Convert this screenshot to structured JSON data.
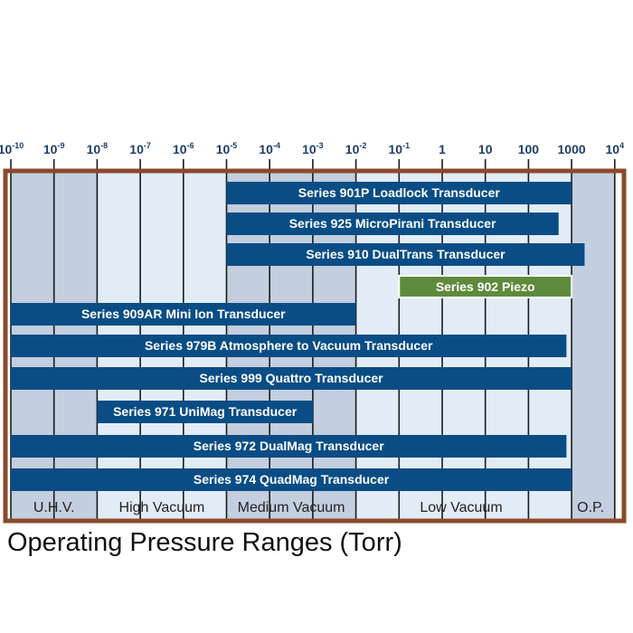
{
  "caption": "Operating Pressure Ranges (Torr)",
  "colors": {
    "bar": "#0a4d85",
    "highlight_bar": "#5f8a3d",
    "highlight_text": "#f6f0a0",
    "frame": "#8a4a2b",
    "band_dark": "#c3cedf",
    "band_light": "#e2ecf6",
    "gridline": "#1b1b1b",
    "tick_text": "#1e3f66"
  },
  "chart_data": {
    "type": "range-bar",
    "title": "Operating Pressure Ranges (Torr)",
    "x_scale": "log",
    "xlim": [
      1e-10,
      10000
    ],
    "tick_labels": [
      {
        "value": 1e-10,
        "base": "10",
        "exp": "-10"
      },
      {
        "value": 1e-09,
        "base": "10",
        "exp": "-9"
      },
      {
        "value": 1e-08,
        "base": "10",
        "exp": "-8"
      },
      {
        "value": 1e-07,
        "base": "10",
        "exp": "-7"
      },
      {
        "value": 1e-06,
        "base": "10",
        "exp": "-6"
      },
      {
        "value": 1e-05,
        "base": "10",
        "exp": "-5"
      },
      {
        "value": 0.0001,
        "base": "10",
        "exp": "-4"
      },
      {
        "value": 0.001,
        "base": "10",
        "exp": "-3"
      },
      {
        "value": 0.01,
        "base": "10",
        "exp": "-2"
      },
      {
        "value": 0.1,
        "base": "10",
        "exp": "-1"
      },
      {
        "value": 1,
        "base": "1",
        "exp": ""
      },
      {
        "value": 10,
        "base": "10",
        "exp": ""
      },
      {
        "value": 100,
        "base": "100",
        "exp": ""
      },
      {
        "value": 1000,
        "base": "1000",
        "exp": ""
      },
      {
        "value": 10000,
        "base": "10",
        "exp": "4"
      }
    ],
    "regions": [
      {
        "label": "U.H.V.",
        "from": 1e-10,
        "to": 1e-08
      },
      {
        "label": "High Vacuum",
        "from": 1e-08,
        "to": 1e-05
      },
      {
        "label": "Medium Vacuum",
        "from": 1e-05,
        "to": 0.01
      },
      {
        "label": "Low Vacuum",
        "from": 0.01,
        "to": 760
      },
      {
        "label": "O.P.",
        "from": 760,
        "to": 10000
      }
    ],
    "series": [
      {
        "name": "Series 901P Loadlock Transducer",
        "min": 1e-05,
        "max": 1000,
        "highlight": false
      },
      {
        "name": "Series 925 MicroPirani Transducer",
        "min": 1e-05,
        "max": 500,
        "highlight": false
      },
      {
        "name": "Series 910 DualTrans Transducer",
        "min": 1e-05,
        "max": 2000,
        "highlight": false
      },
      {
        "name": "Series 902 Piezo",
        "min": 0.1,
        "max": 1000,
        "highlight": true
      },
      {
        "name": "Series 909AR Mini Ion Transducer",
        "min": 1e-10,
        "max": 0.01,
        "highlight": false
      },
      {
        "name": "Series 979B Atmosphere to Vacuum Transducer",
        "min": 1e-10,
        "max": 760,
        "highlight": false
      },
      {
        "name": "Series 999 Quattro Transducer",
        "min": 1e-10,
        "max": 1000,
        "highlight": false
      },
      {
        "name": "Series 971 UniMag Transducer",
        "min": 1e-08,
        "max": 0.001,
        "highlight": false
      },
      {
        "name": "Series 972 DualMag Transducer",
        "min": 1e-10,
        "max": 760,
        "highlight": false
      },
      {
        "name": "Series 974 QuadMag Transducer",
        "min": 1e-10,
        "max": 1000,
        "highlight": false
      }
    ]
  }
}
